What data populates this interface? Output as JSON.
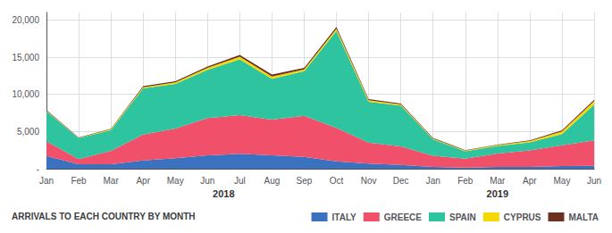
{
  "chart_data": {
    "type": "area",
    "stacked": true,
    "title": "ARRIVALS TO EACH COUNTRY BY MONTH",
    "categories": [
      "Jan",
      "Feb",
      "Mar",
      "Apr",
      "May",
      "Jun",
      "Jul",
      "Aug",
      "Sep",
      "Oct",
      "Nov",
      "Dec",
      "Jan",
      "Feb",
      "Mar",
      "Apr",
      "May",
      "Jun"
    ],
    "series": [
      {
        "name": "ITALY",
        "color": "#3B72C0",
        "values": [
          1700,
          600,
          600,
          1100,
          1400,
          1800,
          2000,
          1800,
          1600,
          1000,
          700,
          500,
          250,
          150,
          250,
          250,
          350,
          400
        ]
      },
      {
        "name": "GREECE",
        "color": "#F0506A",
        "values": [
          2000,
          700,
          1800,
          3500,
          4000,
          5000,
          5200,
          4800,
          5500,
          4500,
          2800,
          2500,
          1500,
          1200,
          1800,
          2200,
          2800,
          3400
        ]
      },
      {
        "name": "SPAIN",
        "color": "#2EC4A0",
        "values": [
          4000,
          2800,
          2800,
          6200,
          6000,
          6500,
          7500,
          5500,
          6000,
          13000,
          5500,
          5500,
          2200,
          1000,
          1000,
          1100,
          1500,
          4800
        ]
      },
      {
        "name": "CYPRUS",
        "color": "#F5D800",
        "values": [
          100,
          50,
          100,
          150,
          200,
          250,
          350,
          300,
          250,
          300,
          200,
          150,
          100,
          80,
          120,
          180,
          350,
          500
        ]
      },
      {
        "name": "MALTA",
        "color": "#6B3020",
        "values": [
          80,
          40,
          80,
          150,
          150,
          200,
          250,
          250,
          200,
          250,
          150,
          120,
          80,
          70,
          80,
          80,
          150,
          180
        ]
      }
    ],
    "ylim": [
      0,
      21000
    ],
    "yticks": [
      {
        "value": 0,
        "label": "-"
      },
      {
        "value": 5000,
        "label": "5,000"
      },
      {
        "value": 10000,
        "label": "10,000"
      },
      {
        "value": 15000,
        "label": "15,000"
      },
      {
        "value": 20000,
        "label": "20,000"
      }
    ],
    "grid": true,
    "legend": "bottom",
    "annotations": [
      {
        "text": "2018",
        "x": 5.5
      },
      {
        "text": "2019",
        "x": 14.0
      }
    ]
  }
}
